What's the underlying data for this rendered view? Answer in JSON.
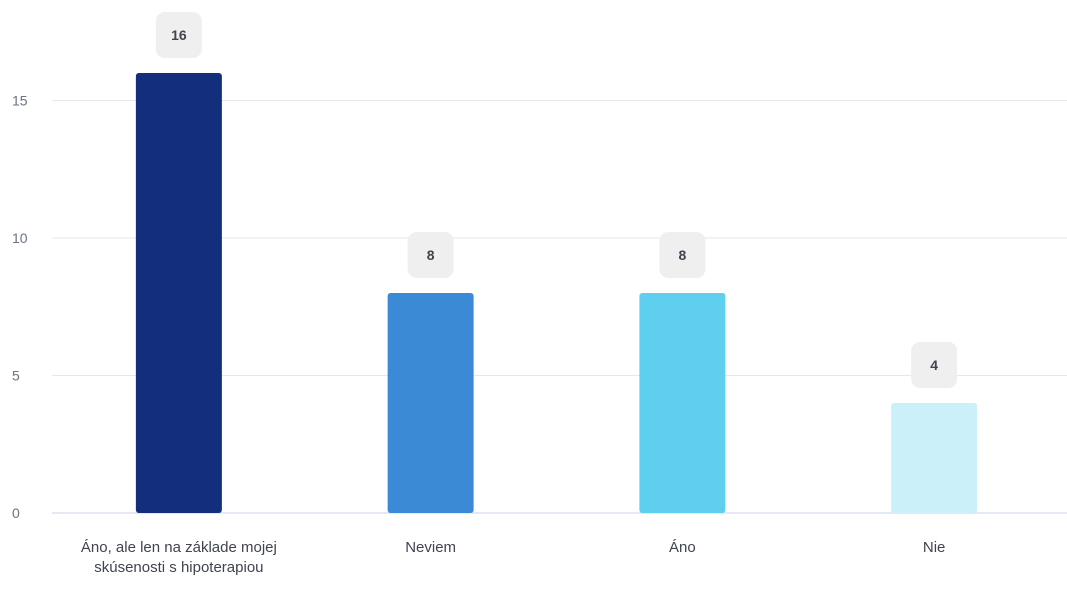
{
  "chart_data": {
    "type": "bar",
    "categories": [
      "Áno, ale len na základe mojej skúsenosti s hipoterapiou",
      "Neviem",
      "Áno",
      "Nie"
    ],
    "values": [
      16,
      8,
      8,
      4
    ],
    "ylim": [
      0,
      18
    ],
    "yticks": [
      "0",
      "5",
      "10",
      "15"
    ],
    "bar_colors": [
      "#132e7d",
      "#3a8ad6",
      "#5ecfee",
      "#ccf0f9"
    ],
    "badge_color": "#efefef",
    "grid": true,
    "title": "",
    "xlabel": "",
    "ylabel": ""
  }
}
